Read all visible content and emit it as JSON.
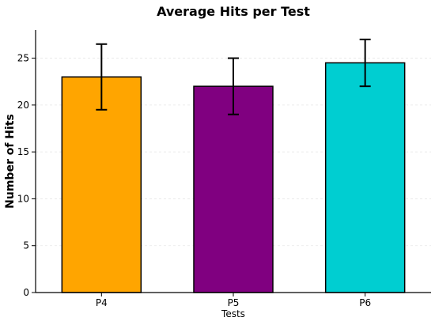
{
  "chart_data": {
    "type": "bar",
    "title": "Average Hits per Test",
    "xlabel": "Tests",
    "ylabel": "Number of Hits",
    "categories": [
      "P4",
      "P5",
      "P6"
    ],
    "values": [
      23,
      22,
      24.5
    ],
    "error_low": [
      19.5,
      19,
      22
    ],
    "error_high": [
      26.5,
      25,
      27
    ],
    "colors": [
      "#FFA500",
      "#800080",
      "#00CED1"
    ],
    "ylim": [
      0,
      28
    ],
    "yticks": [
      0,
      5,
      10,
      15,
      20,
      25
    ],
    "grid": true
  }
}
